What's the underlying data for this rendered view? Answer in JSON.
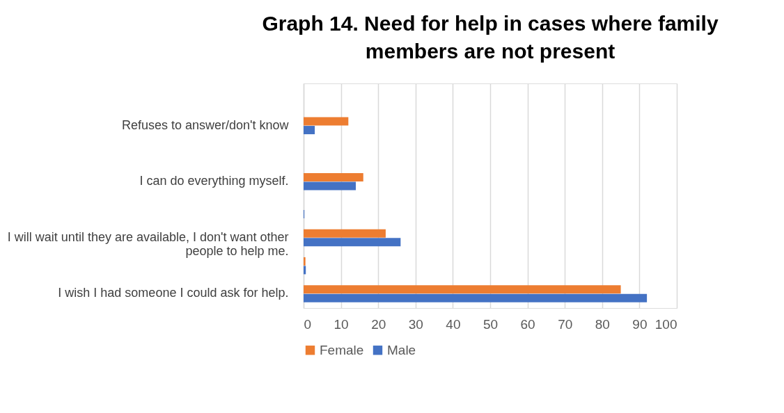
{
  "chart_data": {
    "type": "bar",
    "orientation": "horizontal",
    "title": "Graph 14. Need for help in cases where family members are not present",
    "categories": [
      null,
      "Refuses to answer/don't know",
      null,
      "I can do everything myself.",
      null,
      "I will wait until they are available, I don't want other people to help me.",
      null,
      "I wish I had someone I could ask for help."
    ],
    "series": [
      {
        "name": "Female",
        "color": "#ed7d31",
        "values": [
          null,
          12,
          null,
          16,
          null,
          22,
          0.5,
          85
        ]
      },
      {
        "name": "Male",
        "color": "#4472c4",
        "values": [
          null,
          3,
          null,
          14,
          0.2,
          26,
          0.6,
          92
        ]
      }
    ],
    "xlim": [
      0,
      100
    ],
    "xticks": [
      0,
      10,
      20,
      30,
      40,
      50,
      60,
      70,
      80,
      90,
      100
    ],
    "grid": "x",
    "legend": "bottom"
  }
}
